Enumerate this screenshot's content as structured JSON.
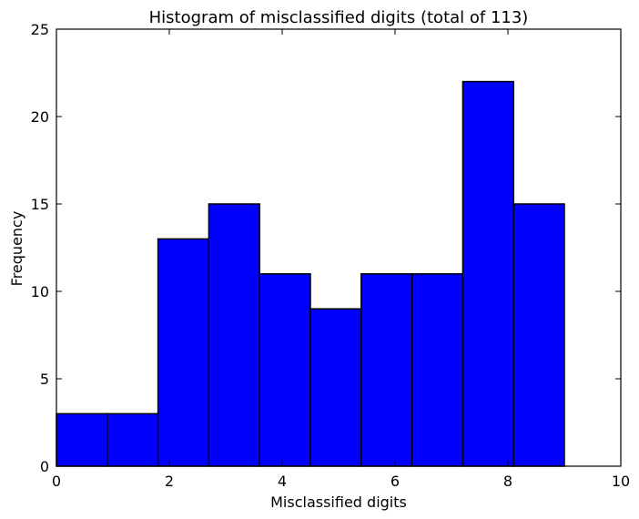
{
  "chart_data": {
    "type": "bar",
    "title": "Histogram of misclassified digits (total of 113)",
    "xlabel": "Misclassified digits",
    "ylabel": "Frequency",
    "xlim": [
      0,
      10
    ],
    "ylim": [
      0,
      25
    ],
    "xticks": [
      0,
      2,
      4,
      6,
      8,
      10
    ],
    "yticks": [
      0,
      5,
      10,
      15,
      20,
      25
    ],
    "bins": [
      {
        "start": 0.0,
        "end": 0.9,
        "value": 3
      },
      {
        "start": 0.9,
        "end": 1.8,
        "value": 3
      },
      {
        "start": 1.8,
        "end": 2.7,
        "value": 13
      },
      {
        "start": 2.7,
        "end": 3.6,
        "value": 15
      },
      {
        "start": 3.6,
        "end": 4.5,
        "value": 11
      },
      {
        "start": 4.5,
        "end": 5.4,
        "value": 9
      },
      {
        "start": 5.4,
        "end": 6.3,
        "value": 11
      },
      {
        "start": 6.3,
        "end": 7.2,
        "value": 11
      },
      {
        "start": 7.2,
        "end": 8.1,
        "value": 22
      },
      {
        "start": 8.1,
        "end": 9.0,
        "value": 15
      }
    ],
    "bar_color": "#0000ff",
    "edge_color": "#000000",
    "grid": false
  }
}
